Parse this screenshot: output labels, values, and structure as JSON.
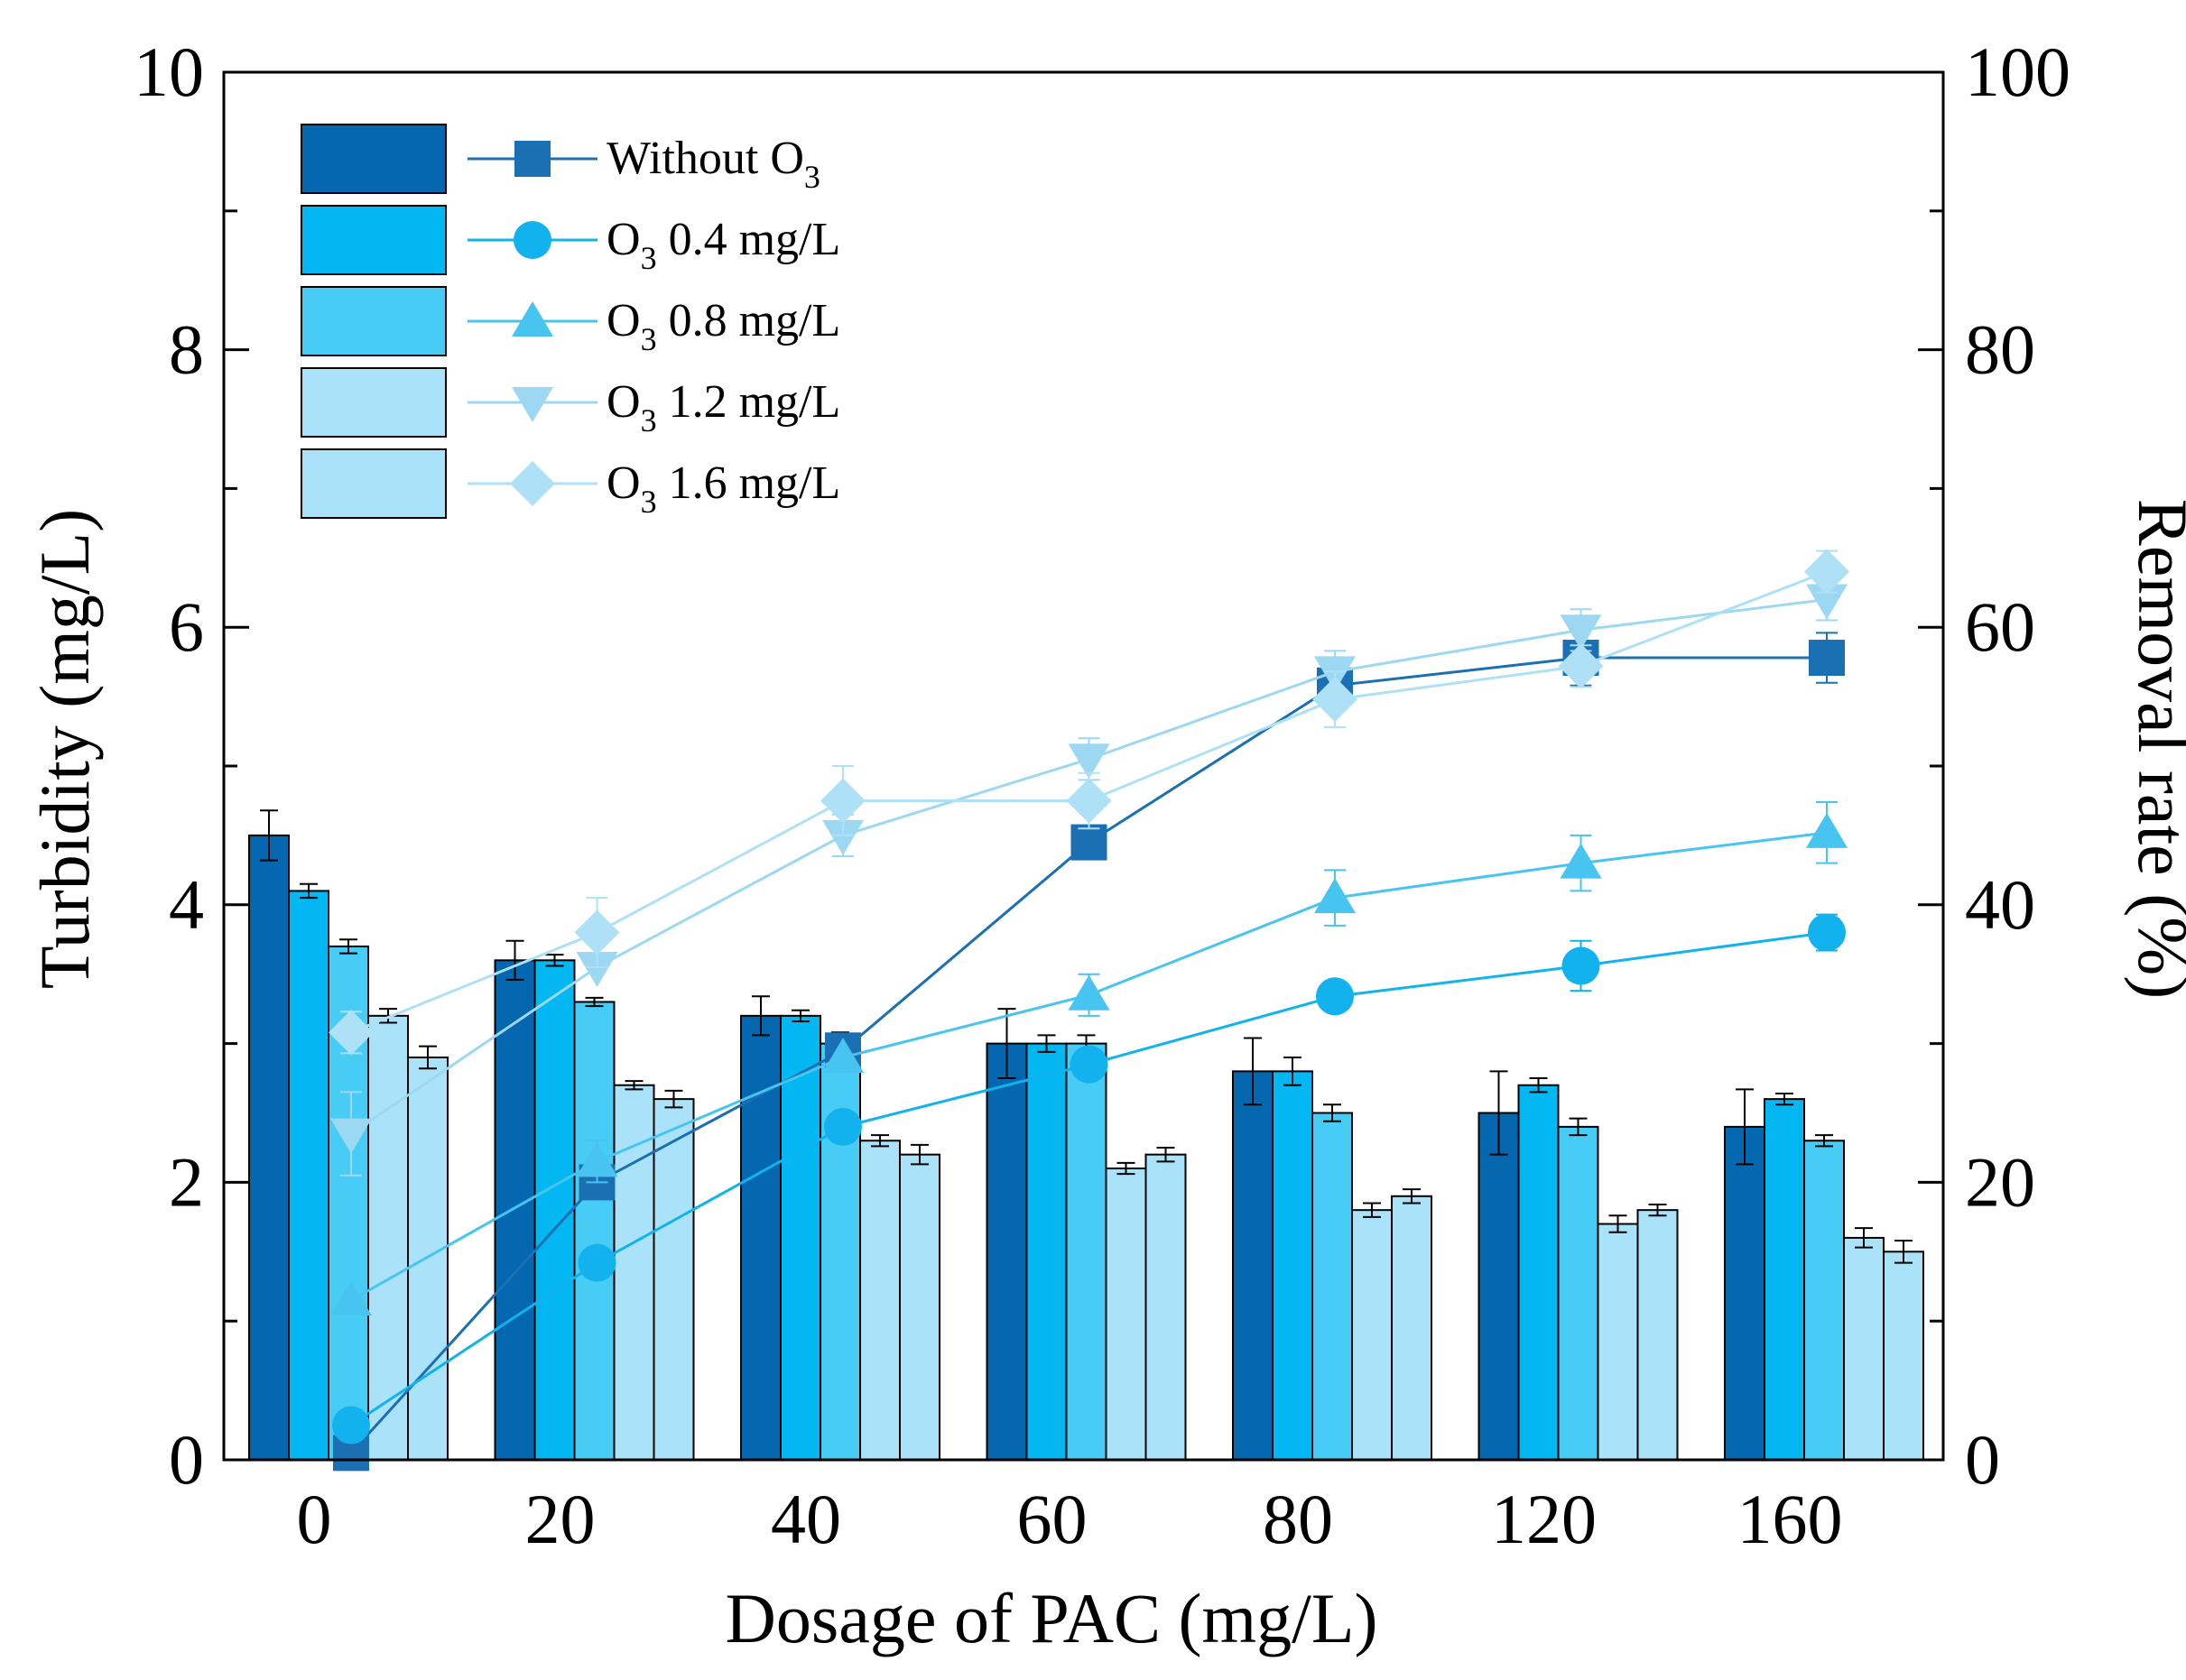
{
  "chart_data": {
    "type": "bar",
    "title": "",
    "xlabel": "Dosage of PAC (mg/L)",
    "ylabel": "Turbidity (mg/L)",
    "y2label": "Removal rate (%)",
    "categories": [
      "0",
      "20",
      "40",
      "60",
      "80",
      "120",
      "160"
    ],
    "ylim": [
      0,
      10
    ],
    "y2lim": [
      0,
      100
    ],
    "yticks": [
      "0",
      "2",
      "4",
      "6",
      "8",
      "10"
    ],
    "y2ticks": [
      "0",
      "20",
      "40",
      "60",
      "80",
      "100"
    ],
    "legend_position": "top-left",
    "series": [
      {
        "name": "Without O3",
        "legend_main": "Without O",
        "legend_sub": "3",
        "bar_color": "#0567b0",
        "line_color": "#1b6fb3",
        "marker": "square",
        "turbidity": [
          4.5,
          3.6,
          3.2,
          3.0,
          2.8,
          2.5,
          2.4
        ],
        "turbidity_err": [
          0.18,
          0.14,
          0.14,
          0.25,
          0.24,
          0.3,
          0.27
        ],
        "removal": [
          0.5,
          20,
          29.5,
          44.5,
          55.8,
          57.8,
          57.8
        ],
        "removal_err": [
          0,
          0,
          0,
          0,
          0,
          2,
          1.8
        ]
      },
      {
        "name": "O3 0.4 mg/L",
        "legend_pre": "O",
        "legend_sub": "3",
        "legend_post": " 0.4 mg/L",
        "bar_color": "#03b7f2",
        "line_color": "#12b2ee",
        "marker": "circle",
        "turbidity": [
          4.1,
          3.6,
          3.2,
          3.0,
          2.8,
          2.7,
          2.6
        ],
        "turbidity_err": [
          0.05,
          0.04,
          0.04,
          0.06,
          0.1,
          0.05,
          0.04
        ],
        "removal": [
          2.5,
          14.2,
          24,
          28.5,
          33.4,
          35.6,
          38
        ],
        "removal_err": [
          0,
          0,
          0,
          0,
          0,
          1.8,
          1.3
        ]
      },
      {
        "name": "O3 0.8 mg/L",
        "legend_pre": "O",
        "legend_sub": "3",
        "legend_post": " 0.8 mg/L",
        "bar_color": "#47cdf5",
        "line_color": "#48c4f0",
        "marker": "triangle-up",
        "turbidity": [
          3.7,
          3.3,
          3.0,
          3.0,
          2.5,
          2.4,
          2.3
        ],
        "turbidity_err": [
          0.05,
          0.03,
          0.08,
          0.06,
          0.06,
          0.06,
          0.04
        ],
        "removal": [
          11.5,
          21.5,
          29,
          33.5,
          40.5,
          43,
          45.2
        ],
        "removal_err": [
          0,
          1.5,
          0,
          1.5,
          2,
          2,
          2.2
        ]
      },
      {
        "name": "O3 1.2 mg/L",
        "legend_pre": "O",
        "legend_sub": "3",
        "legend_post": " 1.2 mg/L",
        "bar_color": "#aae3f9",
        "line_color": "#9dd8f3",
        "marker": "triangle-down",
        "turbidity": [
          3.2,
          2.7,
          2.3,
          2.1,
          1.8,
          1.7,
          1.6
        ],
        "turbidity_err": [
          0.05,
          0.03,
          0.04,
          0.04,
          0.05,
          0.06,
          0.07
        ],
        "removal": [
          23.5,
          35.5,
          45,
          50.5,
          56.8,
          59.8,
          62
        ],
        "removal_err": [
          3,
          0,
          1.5,
          1.5,
          1.5,
          1.5,
          1.5
        ]
      },
      {
        "name": "O3 1.6 mg/L",
        "legend_pre": "O",
        "legend_sub": "3",
        "legend_post": " 1.6 mg/L",
        "bar_color": "#aae3f9",
        "line_color": "#aee0f6",
        "marker": "diamond",
        "turbidity": [
          2.9,
          2.6,
          2.2,
          2.2,
          1.9,
          1.8,
          1.5
        ],
        "turbidity_err": [
          0.08,
          0.06,
          0.07,
          0.05,
          0.05,
          0.04,
          0.08
        ],
        "removal": [
          30.8,
          38,
          47.5,
          47.5,
          54.8,
          57.2,
          64
        ],
        "removal_err": [
          1.5,
          2.5,
          2.5,
          2,
          2,
          1.5,
          1.5
        ]
      }
    ]
  }
}
